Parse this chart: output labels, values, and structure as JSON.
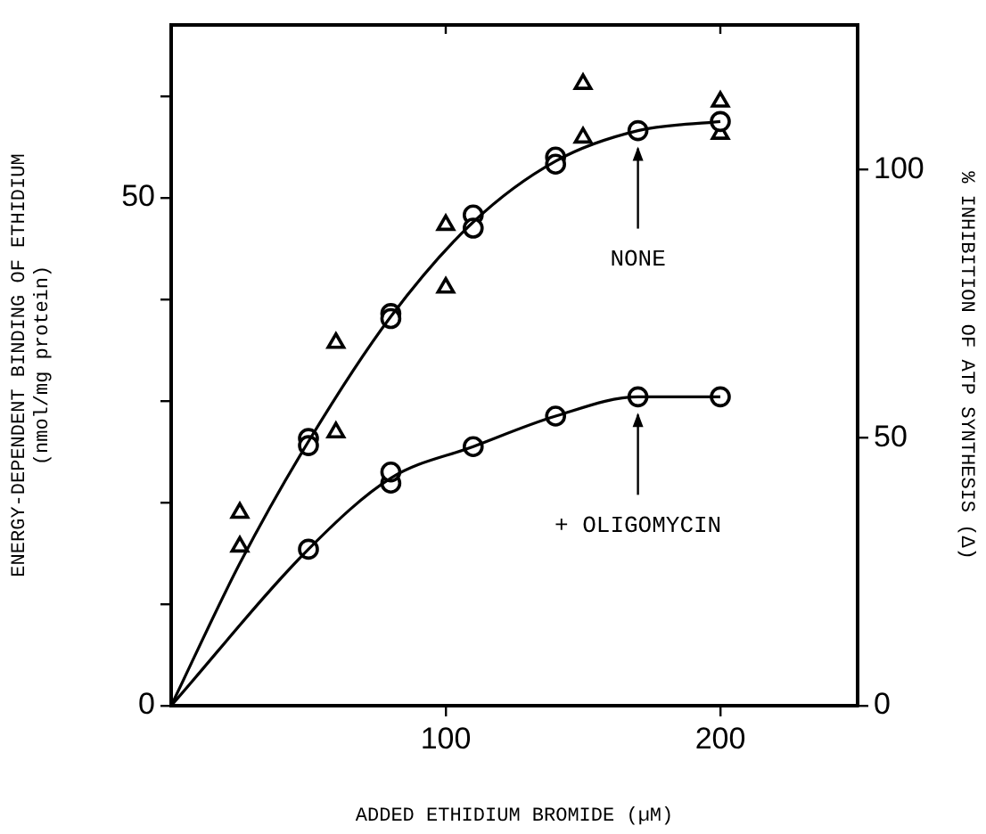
{
  "chart_data": {
    "type": "scatter",
    "xlabel": "ADDED ETHIDIUM BROMIDE (µM)",
    "ylabel": "ENERGY-DEPENDENT BINDING OF ETHIDIUM\n(nmol/mg protein)",
    "y2label": "% INHIBITION OF ATP SYNTHESIS (Δ)",
    "xlim": [
      0,
      250
    ],
    "xticks": [
      100,
      200
    ],
    "ylim": [
      0,
      67
    ],
    "yticks": [
      0,
      {
        "value": 10,
        "label": null
      },
      {
        "value": 20,
        "label": null
      },
      {
        "value": 30,
        "label": null
      },
      {
        "value": 40,
        "label": null
      },
      50,
      {
        "value": 60,
        "label": null
      }
    ],
    "y2lim": [
      0,
      127
    ],
    "y2ticks": [
      0,
      50,
      100
    ],
    "grid": false,
    "legend": false,
    "series": [
      {
        "type": "line",
        "marker": "none",
        "color": "#000000",
        "x": [
          0,
          25,
          50,
          80,
          110,
          140,
          170,
          200
        ],
        "values": [
          0,
          14,
          26,
          38.3,
          47.6,
          53.6,
          56.6,
          57.5
        ]
      },
      {
        "type": "line",
        "marker": "none",
        "color": "#000000",
        "x": [
          0,
          50,
          80,
          110,
          140,
          170,
          200
        ],
        "values": [
          0,
          15.4,
          22.4,
          25.5,
          28.5,
          30.4,
          30.4
        ]
      },
      {
        "name": "NONE",
        "marker": "circle",
        "color": "#000000",
        "x": [
          50,
          50,
          80,
          80,
          110,
          110,
          140,
          140,
          170,
          200
        ],
        "values": [
          26.3,
          25.6,
          38.6,
          38.1,
          48.3,
          47.0,
          54.0,
          53.3,
          56.6,
          57.5
        ]
      },
      {
        "name": "+ OLIGOMYCIN",
        "marker": "circle",
        "color": "#000000",
        "x": [
          50,
          80,
          80,
          110,
          140,
          170,
          200
        ],
        "values": [
          15.4,
          21.9,
          23.0,
          25.5,
          28.5,
          30.4,
          30.4
        ]
      },
      {
        "marker": "triangle",
        "axis": "y2",
        "color": "#000000",
        "x": [
          25,
          25,
          60,
          60,
          100,
          100,
          150,
          150,
          200,
          200
        ],
        "values": [
          36,
          29.7,
          51,
          67.7,
          89.7,
          78,
          116,
          106,
          112.7,
          106.7
        ]
      }
    ]
  }
}
